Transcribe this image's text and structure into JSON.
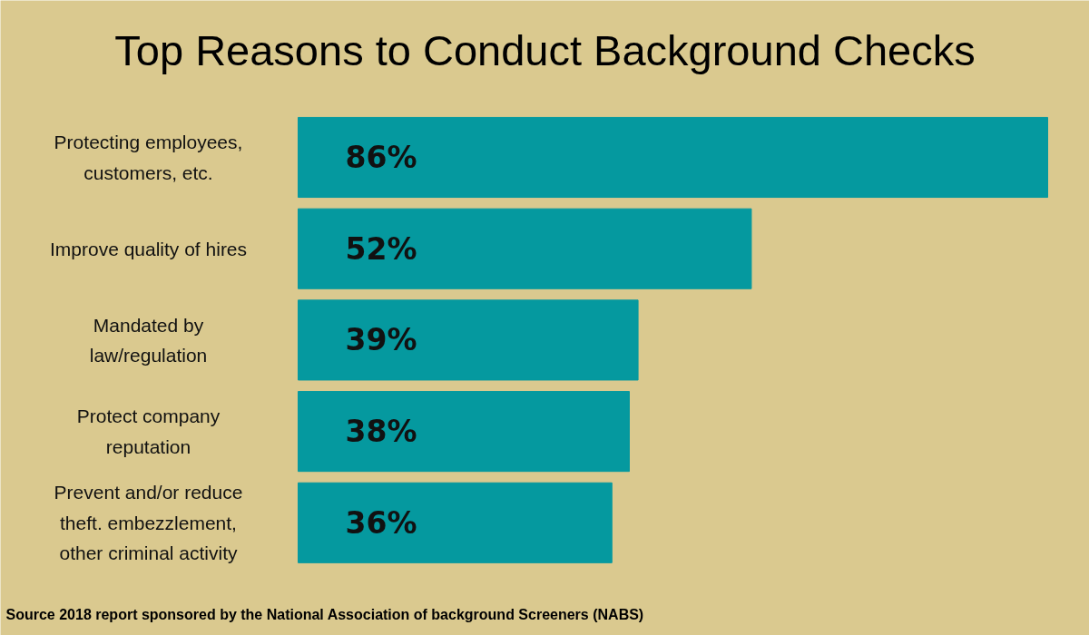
{
  "chart_data": {
    "type": "bar",
    "orientation": "horizontal",
    "title": "Top Reasons to Conduct Background Checks",
    "categories": [
      "Protecting employees, customers, etc.",
      "Improve quality of hires",
      "Mandated by law/regulation",
      "Protect company reputation",
      "Prevent and/or reduce theft. embezzlement, other criminal activity"
    ],
    "values": [
      86,
      52,
      39,
      38,
      36
    ],
    "value_labels": [
      "86%",
      "52%",
      "39%",
      "38%",
      "36%"
    ],
    "color": "#05999f",
    "annotations": [
      "Source 2018 report sponsored by the National Association of background Screeners (NABS)"
    ]
  }
}
